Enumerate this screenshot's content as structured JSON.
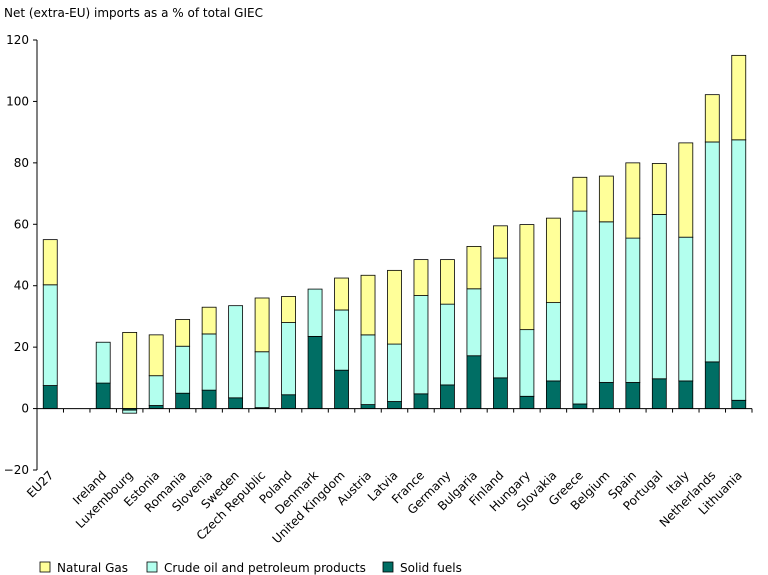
{
  "chart_data": {
    "type": "bar",
    "stacked": true,
    "title": "Net (extra-EU) imports as a % of total GIEC",
    "xlabel": "",
    "ylabel": "",
    "ylim": [
      -20,
      120
    ],
    "yticks": [
      -20,
      0,
      20,
      40,
      60,
      80,
      100,
      120
    ],
    "grid": false,
    "legend_position": "bottom",
    "categories": [
      "EU27",
      "",
      "Ireland",
      "Luxembourg",
      "Estonia",
      "Romania",
      "Slovenia",
      "Sweden",
      "Czech Republic",
      "Poland",
      "Denmark",
      "United Kingdom",
      "Austria",
      "Latvia",
      "France",
      "Germany",
      "Bulgaria",
      "Finland",
      "Hungary",
      "Slovakia",
      "Greece",
      "Belgium",
      "Spain",
      "Portugal",
      "Italy",
      "Netherlands",
      "Lithuania"
    ],
    "series": [
      {
        "name": "Solid fuels",
        "color": "#006e64",
        "values": [
          7.5,
          null,
          8.3,
          -0.5,
          1.0,
          5.0,
          6.0,
          3.5,
          0.3,
          4.5,
          23.5,
          12.5,
          1.3,
          2.3,
          4.8,
          7.7,
          17.2,
          10.0,
          4.0,
          9.0,
          1.5,
          8.5,
          8.5,
          9.7,
          9.0,
          15.2,
          2.7
        ]
      },
      {
        "name": "Crude oil and petroleum products",
        "color": "#b3ffee",
        "values": [
          32.8,
          null,
          13.3,
          -1.0,
          9.7,
          15.3,
          18.3,
          30.0,
          18.2,
          23.5,
          15.4,
          19.6,
          22.7,
          18.7,
          32.0,
          26.3,
          21.8,
          39.0,
          21.7,
          25.5,
          62.8,
          52.3,
          47.0,
          53.5,
          46.8,
          71.6,
          84.8
        ]
      },
      {
        "name": "Natural Gas",
        "color": "#ffff99",
        "values": [
          14.7,
          null,
          0.0,
          24.8,
          13.3,
          8.7,
          8.7,
          0.0,
          17.5,
          8.5,
          0.0,
          10.4,
          19.4,
          24.0,
          11.7,
          14.5,
          13.8,
          10.5,
          34.2,
          27.5,
          11.0,
          14.9,
          24.5,
          16.6,
          30.7,
          15.4,
          27.5
        ]
      }
    ],
    "legend": [
      {
        "name": "Natural Gas",
        "color": "#ffff99"
      },
      {
        "name": "Crude oil and petroleum products",
        "color": "#b3ffee"
      },
      {
        "name": "Solid fuels",
        "color": "#006e64"
      }
    ]
  }
}
